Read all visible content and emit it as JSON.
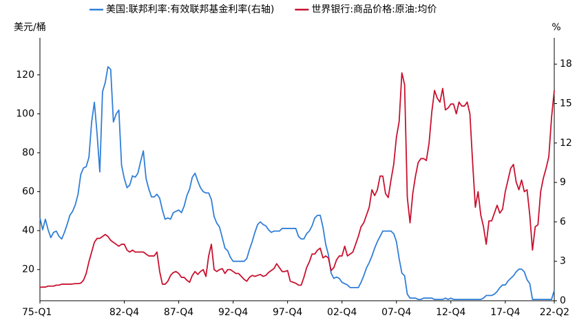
{
  "chart_data": {
    "type": "line",
    "ylabel": "美元/桶",
    "y2label": "%",
    "categories": [
      "75-Q1",
      null,
      null,
      null,
      null,
      null,
      null,
      null,
      null,
      null,
      null,
      null,
      null,
      null,
      null,
      null,
      null,
      null,
      null,
      null,
      null,
      null,
      null,
      null,
      null,
      null,
      null,
      null,
      null,
      null,
      null,
      "82-Q4",
      null,
      null,
      null,
      null,
      null,
      null,
      null,
      null,
      null,
      null,
      null,
      null,
      null,
      null,
      null,
      null,
      null,
      null,
      null,
      "87-Q4",
      null,
      null,
      null,
      null,
      null,
      null,
      null,
      null,
      null,
      null,
      null,
      null,
      null,
      null,
      null,
      null,
      null,
      null,
      null,
      "92-Q4",
      null,
      null,
      null,
      null,
      null,
      null,
      null,
      null,
      null,
      null,
      null,
      null,
      null,
      null,
      null,
      null,
      null,
      null,
      null,
      "97-Q4",
      null,
      null,
      null,
      null,
      null,
      null,
      null,
      null,
      null,
      null,
      null,
      null,
      null,
      null,
      null,
      null,
      null,
      null,
      null,
      "02-Q4",
      null,
      null,
      null,
      null,
      null,
      null,
      null,
      null,
      null,
      null,
      null,
      null,
      null,
      null,
      null,
      null,
      null,
      null,
      null,
      "07-Q4",
      null,
      null,
      null,
      null,
      null,
      null,
      null,
      null,
      null,
      null,
      null,
      null,
      null,
      null,
      null,
      null,
      null,
      null,
      null,
      "12-Q4",
      null,
      null,
      null,
      null,
      null,
      null,
      null,
      null,
      null,
      null,
      null,
      null,
      null,
      null,
      null,
      null,
      null,
      null,
      null,
      "17-Q4",
      null,
      null,
      null,
      null,
      null,
      null,
      null,
      null,
      null,
      null,
      null,
      null,
      null,
      null,
      null,
      null,
      null,
      "22-Q2"
    ],
    "series": [
      {
        "name": "美国:联邦利率:有效联邦基金利率(右轴)",
        "color": "#2f7ed8",
        "axis": "y2",
        "values": [
          6.3,
          5.4,
          6.2,
          5.4,
          4.8,
          5.2,
          5.3,
          4.9,
          4.7,
          5.2,
          5.8,
          6.5,
          6.8,
          7.3,
          8.1,
          9.6,
          10.1,
          10.2,
          10.9,
          13.6,
          15.1,
          12.7,
          9.8,
          15.9,
          16.6,
          17.8,
          17.6,
          13.6,
          14.2,
          14.5,
          10.3,
          9.3,
          8.6,
          8.8,
          9.5,
          9.4,
          9.7,
          10.6,
          11.4,
          9.3,
          8.5,
          7.9,
          7.9,
          8.1,
          7.8,
          6.9,
          6.2,
          6.3,
          6.2,
          6.7,
          6.8,
          6.9,
          6.7,
          7.2,
          8.0,
          8.5,
          9.4,
          9.7,
          9.1,
          8.6,
          8.3,
          8.2,
          8.2,
          7.7,
          6.4,
          5.9,
          5.6,
          4.8,
          4.0,
          3.8,
          3.3,
          3.0,
          3.0,
          3.0,
          3.0,
          3.0,
          3.2,
          3.9,
          4.5,
          5.2,
          5.8,
          6.0,
          5.8,
          5.7,
          5.4,
          5.2,
          5.3,
          5.3,
          5.3,
          5.5,
          5.5,
          5.5,
          5.5,
          5.5,
          5.5,
          4.9,
          4.7,
          4.7,
          5.1,
          5.3,
          5.7,
          6.3,
          6.5,
          6.5,
          5.6,
          4.3,
          3.5,
          2.1,
          1.7,
          1.8,
          1.7,
          1.4,
          1.3,
          1.2,
          1.0,
          1.0,
          1.0,
          1.0,
          1.4,
          1.9,
          2.5,
          2.9,
          3.4,
          4.0,
          4.5,
          4.9,
          5.3,
          5.3,
          5.3,
          5.3,
          5.1,
          4.5,
          3.2,
          2.1,
          1.9,
          0.5,
          0.2,
          0.2,
          0.2,
          0.1,
          0.1,
          0.2,
          0.2,
          0.2,
          0.2,
          0.1,
          0.1,
          0.1,
          0.1,
          0.2,
          0.1,
          0.2,
          0.1,
          0.1,
          0.1,
          0.1,
          0.1,
          0.1,
          0.1,
          0.1,
          0.1,
          0.1,
          0.1,
          0.2,
          0.4,
          0.4,
          0.4,
          0.5,
          0.7,
          1.0,
          1.2,
          1.2,
          1.5,
          1.7,
          1.9,
          2.2,
          2.4,
          2.4,
          2.2,
          1.6,
          1.3,
          0.1,
          0.1,
          0.1,
          0.1,
          0.1,
          0.1,
          0.1,
          0.1,
          0.8
        ]
      },
      {
        "name": "世界银行:商品价格:原油:均价",
        "color": "#c8102e",
        "axis": "y",
        "values": [
          10.9,
          11,
          11,
          11.5,
          11.5,
          11.5,
          12,
          12,
          12.5,
          12.5,
          12.5,
          12.5,
          12.6,
          12.8,
          12.8,
          13,
          14.5,
          18,
          24,
          29,
          34,
          36,
          36,
          37,
          38,
          37,
          35,
          34,
          33,
          32,
          33,
          33,
          30,
          29,
          30,
          29,
          29,
          29,
          29,
          28,
          27,
          27,
          27,
          29,
          19,
          12.5,
          12.5,
          14,
          17,
          18.5,
          19,
          18,
          16,
          16,
          14.5,
          13.5,
          17,
          19,
          17.5,
          19,
          20,
          16.5,
          27,
          33,
          20,
          19,
          20,
          20.5,
          18,
          20,
          20,
          19,
          18,
          18,
          16.5,
          15,
          14,
          16,
          17,
          16.5,
          17,
          17.5,
          16.5,
          17,
          18.5,
          19.5,
          20.5,
          23,
          21,
          19,
          19,
          19.5,
          14,
          13.5,
          13,
          12,
          12,
          16,
          21,
          24,
          28,
          28,
          30,
          31,
          26,
          27,
          26,
          19.5,
          21,
          25,
          27,
          27,
          32,
          27,
          28,
          29,
          33,
          37,
          42,
          44,
          48,
          52,
          61,
          58,
          61,
          68,
          68,
          59,
          57,
          66,
          74,
          88,
          96,
          121,
          115,
          57,
          44,
          59,
          68,
          75,
          77,
          77,
          76,
          85,
          101,
          112,
          108,
          106,
          113,
          102,
          103,
          105,
          105,
          100,
          106,
          104,
          104,
          106,
          100,
          75,
          52,
          60,
          48,
          42,
          33,
          45,
          45,
          49,
          53,
          49,
          51,
          60,
          66,
          72,
          74,
          65,
          61,
          66,
          60,
          61,
          48,
          30,
          42,
          43,
          60,
          67,
          72,
          78,
          98,
          112
        ]
      }
    ],
    "ylim": [
      4,
      139
    ],
    "yticks": [
      20,
      40,
      60,
      80,
      100,
      120
    ],
    "y2lim": [
      0,
      20
    ],
    "y2ticks": [
      0,
      3,
      6,
      9,
      12,
      15,
      18
    ],
    "legend": "top"
  }
}
